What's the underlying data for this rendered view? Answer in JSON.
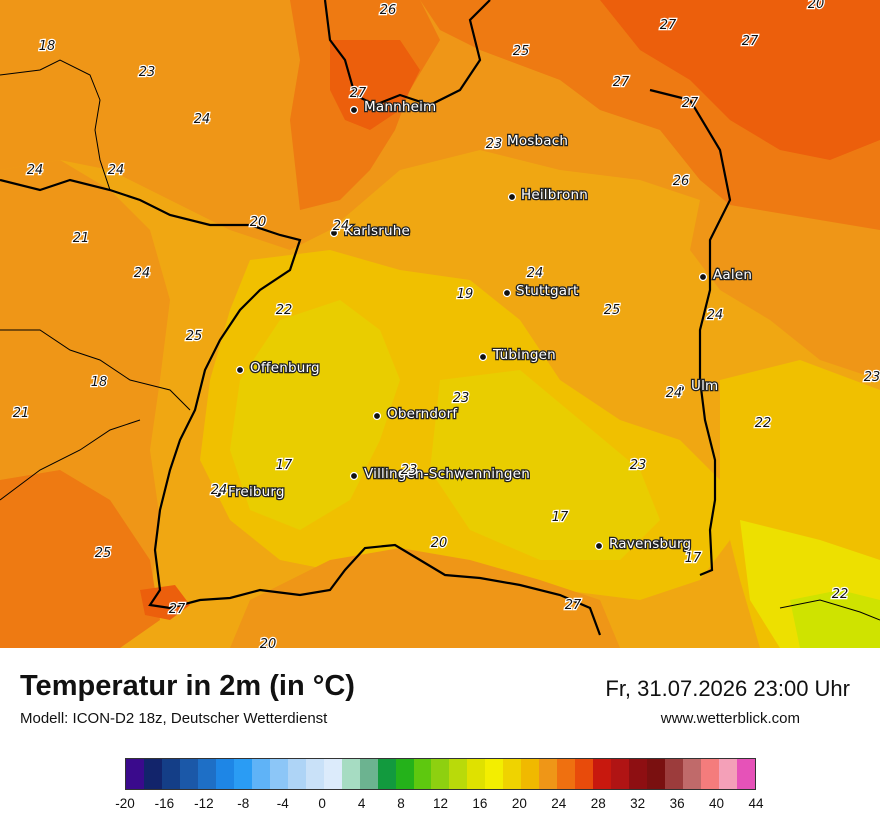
{
  "title": "Temperatur in 2m (in °C)",
  "subtitle": "Modell: ICON-D2 18z, Deutscher Wetterdienst",
  "datetime": "Fr, 31.07.2026 23:00 Uhr",
  "website": "www.wetterblick.com",
  "colors": {
    "t17": "#e9cd00",
    "t18": "#f0c000",
    "t20": "#f3b40b",
    "t22": "#f0a712",
    "t24": "#ef9617",
    "t26": "#ee7a12",
    "t28": "#ec5f0c",
    "hot": "#e0390a",
    "cool": "#ede000",
    "vcool": "#cfe300"
  },
  "cities": [
    {
      "name": "Mannheim"
    },
    {
      "name": "Mosbach"
    },
    {
      "name": "Heilbronn"
    },
    {
      "name": "Karlsruhe"
    },
    {
      "name": "Stuttgart"
    },
    {
      "name": "Aalen"
    },
    {
      "name": "Tübingen"
    },
    {
      "name": "Offenburg"
    },
    {
      "name": "Ulm"
    },
    {
      "name": "Oberndorf"
    },
    {
      "name": "Villingen-Schwenningen"
    },
    {
      "name": "Freiburg"
    },
    {
      "name": "Ravensburg"
    }
  ],
  "temps": [
    "26",
    "20",
    "18",
    "23",
    "25",
    "27",
    "27",
    "27",
    "27",
    "27",
    "24",
    "24",
    "24",
    "26",
    "20",
    "21",
    "24",
    "19",
    "24",
    "25",
    "22",
    "25",
    "24",
    "18",
    "23",
    "24",
    "21",
    "22",
    "17",
    "23",
    "23",
    "24",
    "17",
    "20",
    "25",
    "17",
    "27",
    "27",
    "22",
    "23",
    "24",
    "23",
    "20"
  ],
  "scale": {
    "colors": [
      "#3a0a8c",
      "#12246b",
      "#143e87",
      "#1b58a8",
      "#1e6fc6",
      "#1e86e6",
      "#2a9cf4",
      "#5fb3f7",
      "#8cc6f7",
      "#aed4f6",
      "#c9e1f8",
      "#dcebfb",
      "#a6dcc2",
      "#6cb390",
      "#129a3e",
      "#24b21a",
      "#5ec80f",
      "#8ed010",
      "#b9da0a",
      "#dfe100",
      "#f3ee00",
      "#efd300",
      "#f0b900",
      "#ef9617",
      "#ef7010",
      "#e84b0b",
      "#c8180e",
      "#b01414",
      "#8e0f12",
      "#7a1010",
      "#9c3c3c",
      "#c06a6a",
      "#f47c7c",
      "#f4a0b8",
      "#e652b8"
    ],
    "labels": [
      "-20",
      "-16",
      "-12",
      "-8",
      "-4",
      "0",
      "4",
      "8",
      "12",
      "16",
      "20",
      "24",
      "28",
      "32",
      "36",
      "40",
      "44"
    ]
  }
}
